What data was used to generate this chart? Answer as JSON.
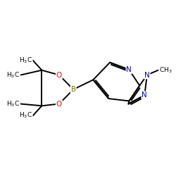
{
  "background": "#ffffff",
  "bond_color": "#000000",
  "bond_lw": 1.4,
  "colors": {
    "N": "#0000cc",
    "O": "#ff0000",
    "B": "#7a7a00",
    "C": "#000000"
  },
  "figsize": [
    2.5,
    2.5
  ],
  "dpi": 100,
  "xlim": [
    0.0,
    10.0
  ],
  "ylim": [
    1.5,
    8.5
  ]
}
